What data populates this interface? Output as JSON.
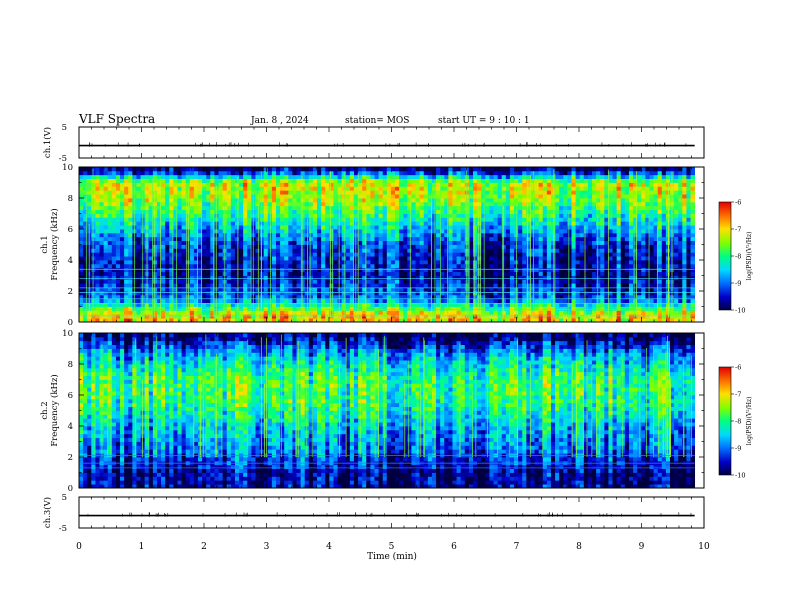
{
  "header": {
    "title": "VLF Spectra",
    "date": "Jan. 8 , 2024",
    "station": "station= MOS",
    "start": "start UT = 9 : 10 : 1"
  },
  "colors": {
    "background": "#ffffff",
    "spectrogram_scale": [
      "#000040",
      "#0000c8",
      "#0070ff",
      "#00d8ff",
      "#00ff80",
      "#80ff00",
      "#ffe000",
      "#ff7000",
      "#e00000"
    ],
    "trace": "#000000"
  },
  "chart_data": [
    {
      "type": "line",
      "panel": "ch1-voltage",
      "ylabel": "ch.1(V)",
      "ylim": [
        -5,
        5
      ],
      "ytick_labels": [
        "5",
        "-5"
      ],
      "x_range_min": [
        0,
        9.85
      ],
      "series": [
        {
          "values": [
            -1,
            -1
          ]
        }
      ]
    },
    {
      "type": "heatmap",
      "panel": "ch1-spectrogram",
      "ylabel": "ch.1 Frequency (kHz)",
      "ylim": [
        0,
        10
      ],
      "ytick_labels": [
        "0",
        "2",
        "4",
        "6",
        "8",
        "10"
      ],
      "x_range_min": [
        0,
        9.85
      ],
      "intensity_profile_kHz": [
        {
          "f": 0.5,
          "logPSD": -7.0
        },
        {
          "f": 1.5,
          "logPSD": -9.0
        },
        {
          "f": 3.0,
          "logPSD": -9.6
        },
        {
          "f": 5.0,
          "logPSD": -9.2
        },
        {
          "f": 6.5,
          "logPSD": -8.3
        },
        {
          "f": 8.0,
          "logPSD": -7.4
        },
        {
          "f": 9.0,
          "logPSD": -7.2
        },
        {
          "f": 9.8,
          "logPSD": -9.7
        }
      ],
      "colorbar": {
        "label": "log(PSD)(V²/Hz)",
        "range": [
          -10,
          -6
        ],
        "tick_labels": [
          "-6",
          "-7",
          "-8",
          "-9",
          "-10"
        ]
      }
    },
    {
      "type": "heatmap",
      "panel": "ch2-spectrogram",
      "ylabel": "ch.2 Frequency (kHz)",
      "ylim": [
        0,
        10
      ],
      "ytick_labels": [
        "0",
        "2",
        "4",
        "6",
        "8",
        "10"
      ],
      "x_range_min": [
        0,
        9.85
      ],
      "intensity_profile_kHz": [
        {
          "f": 1.0,
          "logPSD": -9.7
        },
        {
          "f": 2.5,
          "logPSD": -9.0
        },
        {
          "f": 4.0,
          "logPSD": -8.6
        },
        {
          "f": 5.5,
          "logPSD": -8.0
        },
        {
          "f": 7.0,
          "logPSD": -7.9
        },
        {
          "f": 8.5,
          "logPSD": -8.6
        },
        {
          "f": 9.8,
          "logPSD": -9.9
        }
      ],
      "colorbar": {
        "label": "log(PSD)(V²/Hz)",
        "range": [
          -10,
          -6
        ],
        "tick_labels": [
          "-6",
          "-7",
          "-8",
          "-9",
          "-10"
        ]
      }
    },
    {
      "type": "line",
      "panel": "ch3-voltage",
      "ylabel": "ch.3(V)",
      "ylim": [
        -5,
        5
      ],
      "ytick_labels": [
        "5",
        "-5"
      ],
      "x_range_min": [
        0,
        9.85
      ],
      "series": [
        {
          "values": [
            -1,
            -1
          ]
        }
      ]
    }
  ],
  "x_axis": {
    "xlabel": "Time (min)",
    "xlim": [
      0,
      10
    ],
    "tick_labels": [
      "0",
      "1",
      "2",
      "3",
      "4",
      "5",
      "6",
      "7",
      "8",
      "9",
      "10"
    ]
  }
}
